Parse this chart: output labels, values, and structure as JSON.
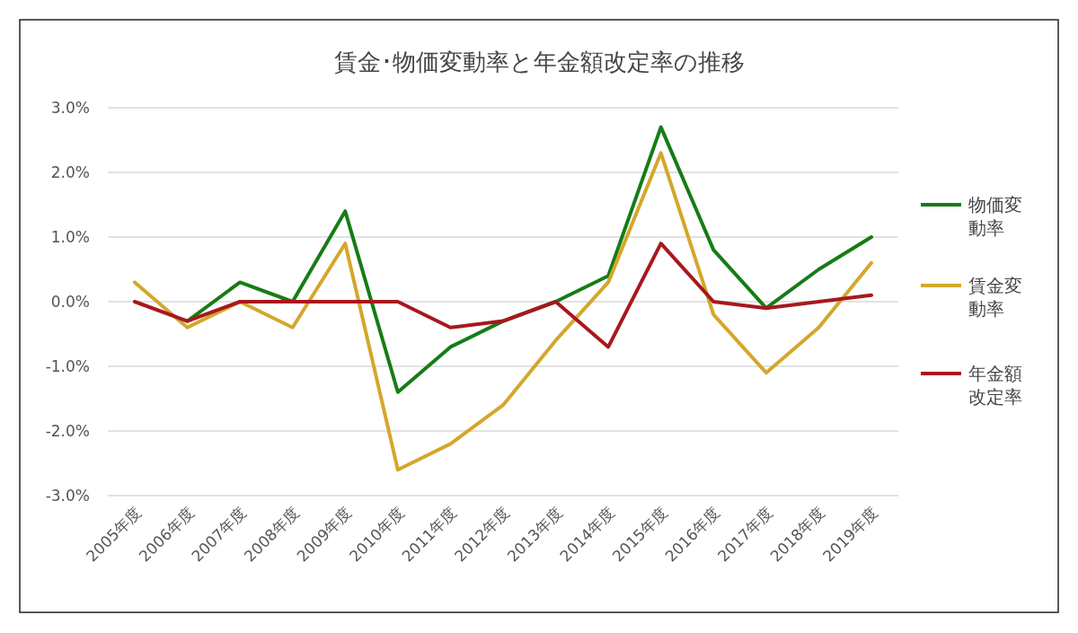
{
  "chart_data": {
    "type": "line",
    "title": "賃金･物価変動率と年金額改定率の推移",
    "categories": [
      "2005年度",
      "2006年度",
      "2007年度",
      "2008年度",
      "2009年度",
      "2010年度",
      "2011年度",
      "2012年度",
      "2013年度",
      "2014年度",
      "2015年度",
      "2016年度",
      "2017年度",
      "2018年度",
      "2019年度"
    ],
    "series": [
      {
        "name": "物価変動率",
        "color": "#167c16",
        "values": [
          null,
          -0.3,
          0.3,
          0.0,
          1.4,
          -1.4,
          -0.7,
          -0.3,
          0.0,
          0.4,
          2.7,
          0.8,
          -0.1,
          0.5,
          1.0
        ]
      },
      {
        "name": "賃金変動率",
        "color": "#d4a72c",
        "values": [
          0.3,
          -0.4,
          0.0,
          -0.4,
          0.9,
          -2.6,
          -2.2,
          -1.6,
          -0.6,
          0.3,
          2.3,
          -0.2,
          -1.1,
          -0.4,
          0.6
        ]
      },
      {
        "name": "年金額改定率",
        "color": "#a8181c",
        "values": [
          0.0,
          -0.3,
          0.0,
          0.0,
          0.0,
          0.0,
          -0.4,
          -0.3,
          0.0,
          -0.7,
          0.9,
          0.0,
          -0.1,
          0.0,
          0.1
        ]
      }
    ],
    "ylim": [
      -3,
      3
    ],
    "yticks": [
      {
        "value": -3,
        "label": "-3.0%"
      },
      {
        "value": -2,
        "label": "-2.0%"
      },
      {
        "value": -1,
        "label": "-1.0%"
      },
      {
        "value": 0,
        "label": "0.0%"
      },
      {
        "value": 1,
        "label": "1.0%"
      },
      {
        "value": 2,
        "label": "2.0%"
      },
      {
        "value": 3,
        "label": "3.0%"
      }
    ],
    "grid": "y",
    "legend": "right",
    "marker": "none",
    "line_style": "solid"
  }
}
